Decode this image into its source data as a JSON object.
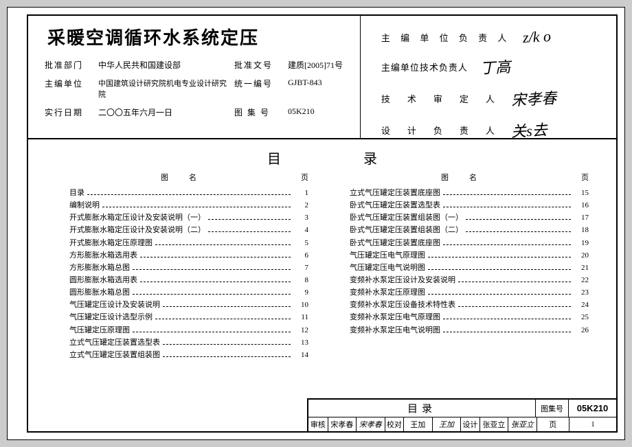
{
  "title": "采暖空调循环水系统定压",
  "meta": {
    "l1": "批准部门",
    "v1": "中华人民共和国建设部",
    "l2": "批准文号",
    "v2": "建质[2005]71号",
    "l3": "主编单位",
    "v3": "中国建筑设计研究院机电专业设计研究院",
    "l4": "统一编号",
    "v4": "GJBT-843",
    "l5": "实行日期",
    "v5": "二〇〇五年六月一日",
    "l6": "图 集 号",
    "v6": "05K210"
  },
  "sigs": [
    {
      "label": "主 编 单 位 负 责 人",
      "val": "z/k o"
    },
    {
      "label": "主编单位技术负责人",
      "val": "丁高"
    },
    {
      "label": "技　术　审　定　人",
      "val": "宋孝春"
    },
    {
      "label": "设　计　负　责　人",
      "val": "关s去"
    }
  ],
  "mulu": "目录",
  "colhead": {
    "name": "图名",
    "page": "页"
  },
  "left": [
    {
      "n": "目录",
      "p": "1"
    },
    {
      "n": "编制说明",
      "p": "2"
    },
    {
      "n": "开式膨胀水箱定压设计及安装说明（一）",
      "p": "3"
    },
    {
      "n": "开式膨胀水箱定压设计及安装说明（二）",
      "p": "4"
    },
    {
      "n": "开式膨胀水箱定压原理图",
      "p": "5"
    },
    {
      "n": "方形膨胀水箱选用表",
      "p": "6"
    },
    {
      "n": "方形膨胀水箱总图",
      "p": "7"
    },
    {
      "n": "圆形膨胀水箱选用表",
      "p": "8"
    },
    {
      "n": "圆形膨胀水箱总图",
      "p": "9"
    },
    {
      "n": "气压罐定压设计及安装说明",
      "p": "10"
    },
    {
      "n": "气压罐定压设计选型示例",
      "p": "11"
    },
    {
      "n": "气压罐定压原理图",
      "p": "12"
    },
    {
      "n": "立式气压罐定压装置选型表",
      "p": "13"
    },
    {
      "n": "立式气压罐定压装置组装图",
      "p": "14"
    }
  ],
  "right": [
    {
      "n": "立式气压罐定压装置底座图",
      "p": "15"
    },
    {
      "n": "卧式气压罐定压装置选型表",
      "p": "16"
    },
    {
      "n": "卧式气压罐定压装置组装图（一）",
      "p": "17"
    },
    {
      "n": "卧式气压罐定压装置组装图（二）",
      "p": "18"
    },
    {
      "n": "卧式气压罐定压装置底座图",
      "p": "19"
    },
    {
      "n": "气压罐定压电气原理图",
      "p": "20"
    },
    {
      "n": "气压罐定压电气说明图",
      "p": "21"
    },
    {
      "n": "变频补水泵定压设计及安装说明",
      "p": "22"
    },
    {
      "n": "变频补水泵定压原理图",
      "p": "23"
    },
    {
      "n": "变频补水泵定压设备技术特性表",
      "p": "24"
    },
    {
      "n": "变频补水泵定压电气原理图",
      "p": "25"
    },
    {
      "n": "变频补水泵定压电气说明图",
      "p": "26"
    }
  ],
  "foot": {
    "title": "目录",
    "setlab": "图集号",
    "setval": "05K210",
    "r2": {
      "a": "审核",
      "an": "宋孝春",
      "as": "宋孝春",
      "b": "校对",
      "bn": "王加",
      "bs": "王加",
      "c": "设计",
      "cn": "张亚立",
      "cs": "张亚立",
      "pl": "页",
      "pv": "1"
    }
  }
}
